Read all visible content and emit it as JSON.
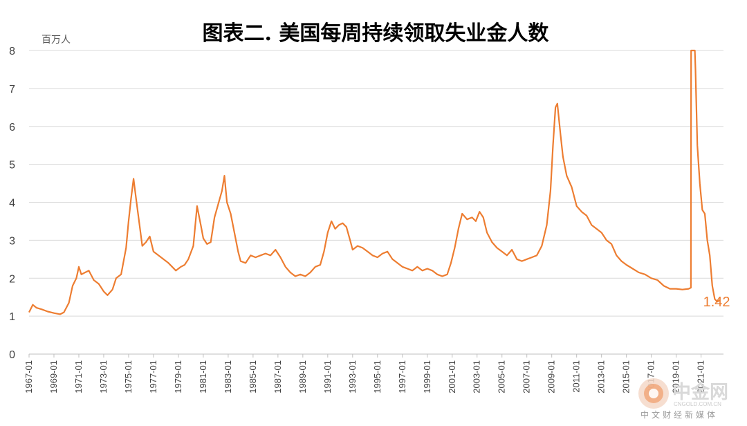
{
  "chart_data": {
    "type": "line",
    "title": "图表二. 美国每周持续领取失业金人数",
    "ylabel": "百万人",
    "ylim": [
      0,
      8
    ],
    "yticks": [
      0,
      1,
      2,
      3,
      4,
      5,
      6,
      7,
      8
    ],
    "xlim": [
      1967.0,
      2022.8
    ],
    "xticks": [
      "1967-01",
      "1969-01",
      "1971-01",
      "1973-01",
      "1975-01",
      "1977-01",
      "1979-01",
      "1981-01",
      "1983-01",
      "1985-01",
      "1987-01",
      "1989-01",
      "1991-01",
      "1993-01",
      "1995-01",
      "1997-01",
      "1999-01",
      "2001-01",
      "2003-01",
      "2005-01",
      "2007-01",
      "2009-01",
      "2011-01",
      "2013-01",
      "2015-01",
      "2017-01",
      "2019-01",
      "2021-01"
    ],
    "grid": true,
    "legend": "none",
    "series": [
      {
        "color": "#ED7D31",
        "points": [
          [
            1967.0,
            1.1
          ],
          [
            1967.3,
            1.3
          ],
          [
            1967.6,
            1.22
          ],
          [
            1968.0,
            1.18
          ],
          [
            1968.5,
            1.12
          ],
          [
            1969.0,
            1.08
          ],
          [
            1969.5,
            1.05
          ],
          [
            1969.8,
            1.1
          ],
          [
            1970.2,
            1.35
          ],
          [
            1970.5,
            1.8
          ],
          [
            1970.8,
            2.0
          ],
          [
            1971.0,
            2.3
          ],
          [
            1971.2,
            2.1
          ],
          [
            1971.5,
            2.15
          ],
          [
            1971.8,
            2.2
          ],
          [
            1972.2,
            1.95
          ],
          [
            1972.6,
            1.85
          ],
          [
            1973.0,
            1.65
          ],
          [
            1973.3,
            1.55
          ],
          [
            1973.7,
            1.7
          ],
          [
            1974.0,
            2.0
          ],
          [
            1974.4,
            2.1
          ],
          [
            1974.8,
            2.8
          ],
          [
            1975.0,
            3.5
          ],
          [
            1975.2,
            4.1
          ],
          [
            1975.4,
            4.62
          ],
          [
            1975.6,
            4.1
          ],
          [
            1975.8,
            3.6
          ],
          [
            1976.1,
            2.85
          ],
          [
            1976.4,
            2.95
          ],
          [
            1976.7,
            3.1
          ],
          [
            1977.0,
            2.7
          ],
          [
            1977.4,
            2.6
          ],
          [
            1977.8,
            2.5
          ],
          [
            1978.2,
            2.4
          ],
          [
            1978.5,
            2.3
          ],
          [
            1978.8,
            2.2
          ],
          [
            1979.2,
            2.3
          ],
          [
            1979.5,
            2.35
          ],
          [
            1979.8,
            2.5
          ],
          [
            1980.2,
            2.85
          ],
          [
            1980.5,
            3.9
          ],
          [
            1980.8,
            3.4
          ],
          [
            1981.0,
            3.05
          ],
          [
            1981.3,
            2.9
          ],
          [
            1981.6,
            2.95
          ],
          [
            1981.9,
            3.6
          ],
          [
            1982.2,
            3.95
          ],
          [
            1982.5,
            4.3
          ],
          [
            1982.7,
            4.7
          ],
          [
            1982.9,
            4.0
          ],
          [
            1983.2,
            3.7
          ],
          [
            1983.5,
            3.2
          ],
          [
            1983.8,
            2.7
          ],
          [
            1984.0,
            2.45
          ],
          [
            1984.4,
            2.4
          ],
          [
            1984.8,
            2.6
          ],
          [
            1985.2,
            2.55
          ],
          [
            1985.6,
            2.6
          ],
          [
            1986.0,
            2.65
          ],
          [
            1986.4,
            2.6
          ],
          [
            1986.8,
            2.75
          ],
          [
            1987.2,
            2.55
          ],
          [
            1987.6,
            2.3
          ],
          [
            1988.0,
            2.15
          ],
          [
            1988.4,
            2.05
          ],
          [
            1988.8,
            2.1
          ],
          [
            1989.2,
            2.05
          ],
          [
            1989.6,
            2.15
          ],
          [
            1990.0,
            2.3
          ],
          [
            1990.4,
            2.35
          ],
          [
            1990.7,
            2.7
          ],
          [
            1991.0,
            3.2
          ],
          [
            1991.3,
            3.5
          ],
          [
            1991.6,
            3.3
          ],
          [
            1991.9,
            3.4
          ],
          [
            1992.2,
            3.45
          ],
          [
            1992.5,
            3.35
          ],
          [
            1992.8,
            3.0
          ],
          [
            1993.0,
            2.75
          ],
          [
            1993.4,
            2.85
          ],
          [
            1993.8,
            2.8
          ],
          [
            1994.2,
            2.7
          ],
          [
            1994.6,
            2.6
          ],
          [
            1995.0,
            2.55
          ],
          [
            1995.4,
            2.65
          ],
          [
            1995.8,
            2.7
          ],
          [
            1996.2,
            2.5
          ],
          [
            1996.6,
            2.4
          ],
          [
            1997.0,
            2.3
          ],
          [
            1997.4,
            2.25
          ],
          [
            1997.8,
            2.2
          ],
          [
            1998.2,
            2.3
          ],
          [
            1998.6,
            2.2
          ],
          [
            1999.0,
            2.25
          ],
          [
            1999.4,
            2.2
          ],
          [
            1999.8,
            2.1
          ],
          [
            2000.2,
            2.05
          ],
          [
            2000.6,
            2.1
          ],
          [
            2000.9,
            2.4
          ],
          [
            2001.2,
            2.8
          ],
          [
            2001.5,
            3.3
          ],
          [
            2001.8,
            3.7
          ],
          [
            2002.2,
            3.55
          ],
          [
            2002.6,
            3.6
          ],
          [
            2002.9,
            3.5
          ],
          [
            2003.2,
            3.75
          ],
          [
            2003.5,
            3.6
          ],
          [
            2003.8,
            3.2
          ],
          [
            2004.2,
            2.95
          ],
          [
            2004.6,
            2.8
          ],
          [
            2005.0,
            2.7
          ],
          [
            2005.4,
            2.6
          ],
          [
            2005.8,
            2.75
          ],
          [
            2006.2,
            2.5
          ],
          [
            2006.6,
            2.45
          ],
          [
            2007.0,
            2.5
          ],
          [
            2007.4,
            2.55
          ],
          [
            2007.8,
            2.6
          ],
          [
            2008.2,
            2.85
          ],
          [
            2008.6,
            3.4
          ],
          [
            2008.9,
            4.3
          ],
          [
            2009.1,
            5.5
          ],
          [
            2009.3,
            6.5
          ],
          [
            2009.45,
            6.6
          ],
          [
            2009.7,
            5.8
          ],
          [
            2009.9,
            5.2
          ],
          [
            2010.2,
            4.7
          ],
          [
            2010.6,
            4.4
          ],
          [
            2011.0,
            3.9
          ],
          [
            2011.4,
            3.75
          ],
          [
            2011.8,
            3.65
          ],
          [
            2012.2,
            3.4
          ],
          [
            2012.6,
            3.3
          ],
          [
            2013.0,
            3.2
          ],
          [
            2013.4,
            3.0
          ],
          [
            2013.8,
            2.9
          ],
          [
            2014.2,
            2.6
          ],
          [
            2014.6,
            2.45
          ],
          [
            2015.0,
            2.35
          ],
          [
            2015.5,
            2.25
          ],
          [
            2016.0,
            2.15
          ],
          [
            2016.5,
            2.1
          ],
          [
            2017.0,
            2.0
          ],
          [
            2017.5,
            1.95
          ],
          [
            2018.0,
            1.8
          ],
          [
            2018.5,
            1.72
          ],
          [
            2019.0,
            1.72
          ],
          [
            2019.5,
            1.7
          ],
          [
            2020.0,
            1.72
          ],
          [
            2020.18,
            1.75
          ],
          [
            2020.2,
            8.0
          ],
          [
            2020.5,
            8.0
          ],
          [
            2020.55,
            7.5
          ],
          [
            2020.7,
            5.5
          ],
          [
            2020.9,
            4.5
          ],
          [
            2021.1,
            3.8
          ],
          [
            2021.3,
            3.7
          ],
          [
            2021.5,
            3.0
          ],
          [
            2021.7,
            2.6
          ],
          [
            2021.9,
            1.8
          ],
          [
            2022.1,
            1.45
          ],
          [
            2022.3,
            1.38
          ],
          [
            2022.5,
            1.42
          ]
        ]
      }
    ],
    "annotations": [
      {
        "text": "1.42",
        "color": "#ED7D31"
      }
    ]
  },
  "watermark": {
    "brand": "中金网",
    "tagline": "中文财经新媒体",
    "url": "CNGOLD.COM.CN"
  }
}
